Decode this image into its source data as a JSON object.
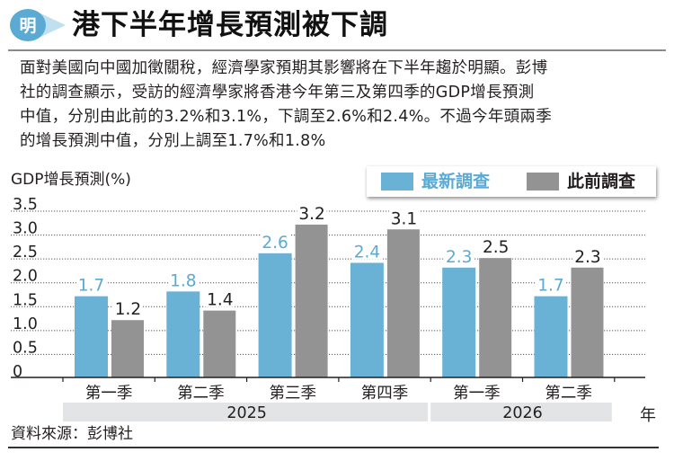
{
  "header": {
    "logo_char": "明",
    "title": "港下半年增長預測被下調"
  },
  "intro_lines": [
    "面對美國向中國加徵關稅，經濟學家預期其影響將在下半年趨於明顯。彭博",
    "社的調查顯示，受訪的經濟學家將香港今年第三及第四季的GDP增長預測",
    "中值，分別由此前的3.2%和3.1%，下調至2.6%和2.4%。不過今年頭兩季",
    "的增長預測中值，分別上調至1.7%和1.8%"
  ],
  "colors": {
    "latest": "#6ab2d5",
    "previous": "#939393",
    "latest_label": "#5aaad3",
    "year_band": "#e3e4e5",
    "grid": "#555555"
  },
  "chart_data": {
    "type": "bar",
    "title": "港下半年增長預測被下調",
    "ylabel": "GDP增長預測(%)",
    "xlabel": "年",
    "ylim": [
      0,
      3.5
    ],
    "yticks": [
      "0",
      "0.5",
      "1.0",
      "1.5",
      "2.0",
      "2.5",
      "3.0",
      "3.5"
    ],
    "ytick_values": [
      0,
      0.5,
      1.0,
      1.5,
      2.0,
      2.5,
      3.0,
      3.5
    ],
    "grid": true,
    "legend_position": "top-right",
    "categories": [
      "第一季",
      "第二季",
      "第三季",
      "第四季",
      "第一季",
      "第二季"
    ],
    "year_groups": [
      {
        "label": "2025",
        "start": 0,
        "end": 3
      },
      {
        "label": "2026",
        "start": 4,
        "end": 5
      }
    ],
    "series": [
      {
        "name": "最新調查",
        "values": [
          1.7,
          1.8,
          2.6,
          2.4,
          2.3,
          1.7
        ]
      },
      {
        "name": "此前調查",
        "values": [
          1.2,
          1.4,
          3.2,
          3.1,
          2.5,
          2.3
        ]
      }
    ]
  },
  "legend": {
    "latest_label": "最新調查",
    "previous_label": "此前調查"
  },
  "source": "資料來源：彭博社"
}
